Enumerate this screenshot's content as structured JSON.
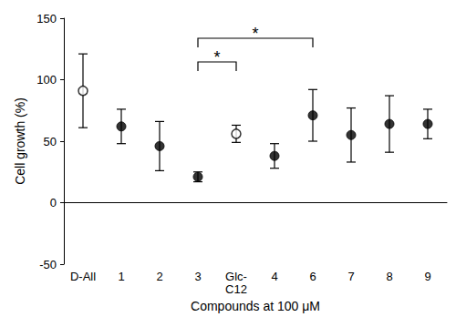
{
  "chart_data": {
    "type": "scatter",
    "x_label": "Compounds at 100 μM",
    "y_label": "Cell growth (%)",
    "categories": [
      "D-All",
      "1",
      "2",
      "3",
      "Glc-\nC12",
      "4",
      "6",
      "7",
      "8",
      "9"
    ],
    "series": [
      {
        "marker": "open",
        "color": "#000000",
        "values": [
          91,
          null,
          null,
          null,
          56,
          null,
          null,
          null,
          null,
          null
        ],
        "errors": [
          30,
          null,
          null,
          null,
          7,
          null,
          null,
          null,
          null,
          null
        ]
      },
      {
        "marker": "filled",
        "color": "#000000",
        "values": [
          null,
          62,
          46,
          21,
          null,
          38,
          71,
          55,
          64,
          64
        ],
        "errors": [
          null,
          14,
          20,
          4,
          null,
          10,
          21,
          22,
          23,
          12
        ]
      }
    ],
    "significance": [
      {
        "between": [
          3,
          4
        ],
        "label": "*"
      },
      {
        "between": [
          3,
          6
        ],
        "label": "*"
      }
    ],
    "ylim": [
      -50,
      150
    ],
    "yticks": [
      -50,
      0,
      50,
      100,
      150
    ],
    "grid": false
  }
}
